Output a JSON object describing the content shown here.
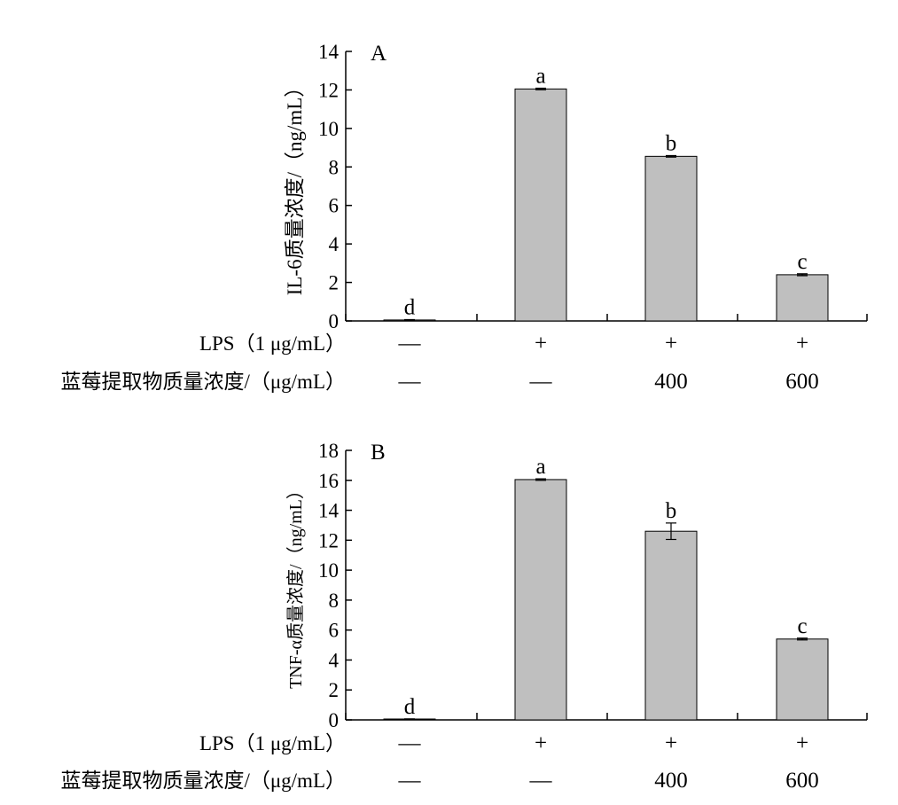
{
  "chart_data": [
    {
      "panel_label": "A",
      "type": "bar",
      "ylabel": "IL-6质量浓度/（ng/mL）",
      "ylim": [
        0,
        14
      ],
      "yticks": [
        0,
        2,
        4,
        6,
        8,
        10,
        12,
        14
      ],
      "values": [
        0.05,
        12.05,
        8.55,
        2.4
      ],
      "errors": [
        0.02,
        0.04,
        0.04,
        0.05
      ],
      "significance": [
        "d",
        "a",
        "b",
        "c"
      ],
      "rows": [
        {
          "label": "LPS（1 μg/mL）",
          "cells": [
            "—",
            "+",
            "+",
            "+"
          ]
        },
        {
          "label": "蓝莓提取物质量浓度/（μg/mL）",
          "cells": [
            "—",
            "—",
            "400",
            "600"
          ]
        }
      ],
      "bar_color": "#bfbfbf"
    },
    {
      "panel_label": "B",
      "type": "bar",
      "ylabel": "TNF-α质量浓度/（ng/mL）",
      "ylim": [
        0,
        18
      ],
      "yticks": [
        0,
        2,
        4,
        6,
        8,
        10,
        12,
        14,
        16,
        18
      ],
      "values": [
        0.05,
        16.05,
        12.6,
        5.4
      ],
      "errors": [
        0.02,
        0.05,
        0.55,
        0.06
      ],
      "significance": [
        "d",
        "a",
        "b",
        "c"
      ],
      "rows": [
        {
          "label": "LPS（1 μg/mL）",
          "cells": [
            "—",
            "+",
            "+",
            "+"
          ]
        },
        {
          "label": "蓝莓提取物质量浓度/（μg/mL）",
          "cells": [
            "—",
            "—",
            "400",
            "600"
          ]
        }
      ],
      "bar_color": "#bfbfbf"
    }
  ]
}
